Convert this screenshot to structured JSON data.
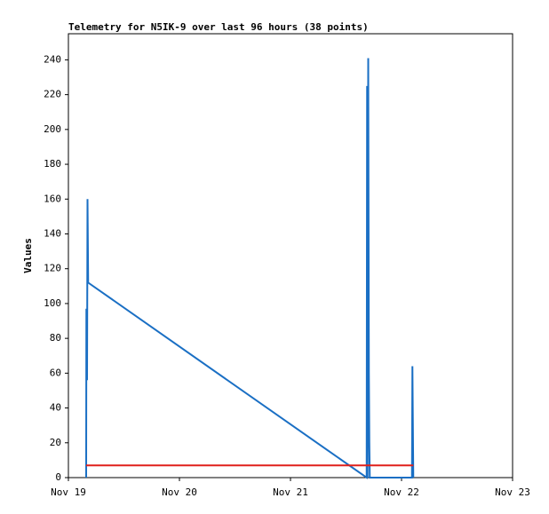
{
  "chart_data": {
    "type": "line",
    "title": "Telemetry for N5IK-9 over last 96 hours (38 points)",
    "y_label": "Values",
    "xlim": [
      19,
      23
    ],
    "xticks": [
      {
        "value": 19,
        "label": "Nov 19"
      },
      {
        "value": 20,
        "label": "Nov 20"
      },
      {
        "value": 21,
        "label": "Nov 21"
      },
      {
        "value": 22,
        "label": "Nov 22"
      },
      {
        "value": 23,
        "label": "Nov 23"
      }
    ],
    "ylim": [
      0,
      255
    ],
    "yticks": [
      0,
      20,
      40,
      60,
      80,
      100,
      120,
      140,
      160,
      180,
      200,
      220,
      240
    ],
    "series": [
      {
        "color": "#1a6fc4",
        "x": [
          19.16,
          19.162,
          19.168,
          19.172,
          19.178,
          21.686,
          21.69,
          21.694,
          21.7,
          21.706,
          21.71,
          21.714,
          22.094,
          22.098,
          22.102,
          22.106
        ],
        "values": [
          0,
          97,
          56,
          160,
          112,
          0,
          225,
          0,
          241,
          60,
          20,
          0,
          0,
          64,
          32,
          0
        ]
      },
      {
        "color": "#e0201b",
        "x": [
          19.16,
          22.106
        ],
        "values": [
          7,
          7
        ]
      }
    ]
  }
}
